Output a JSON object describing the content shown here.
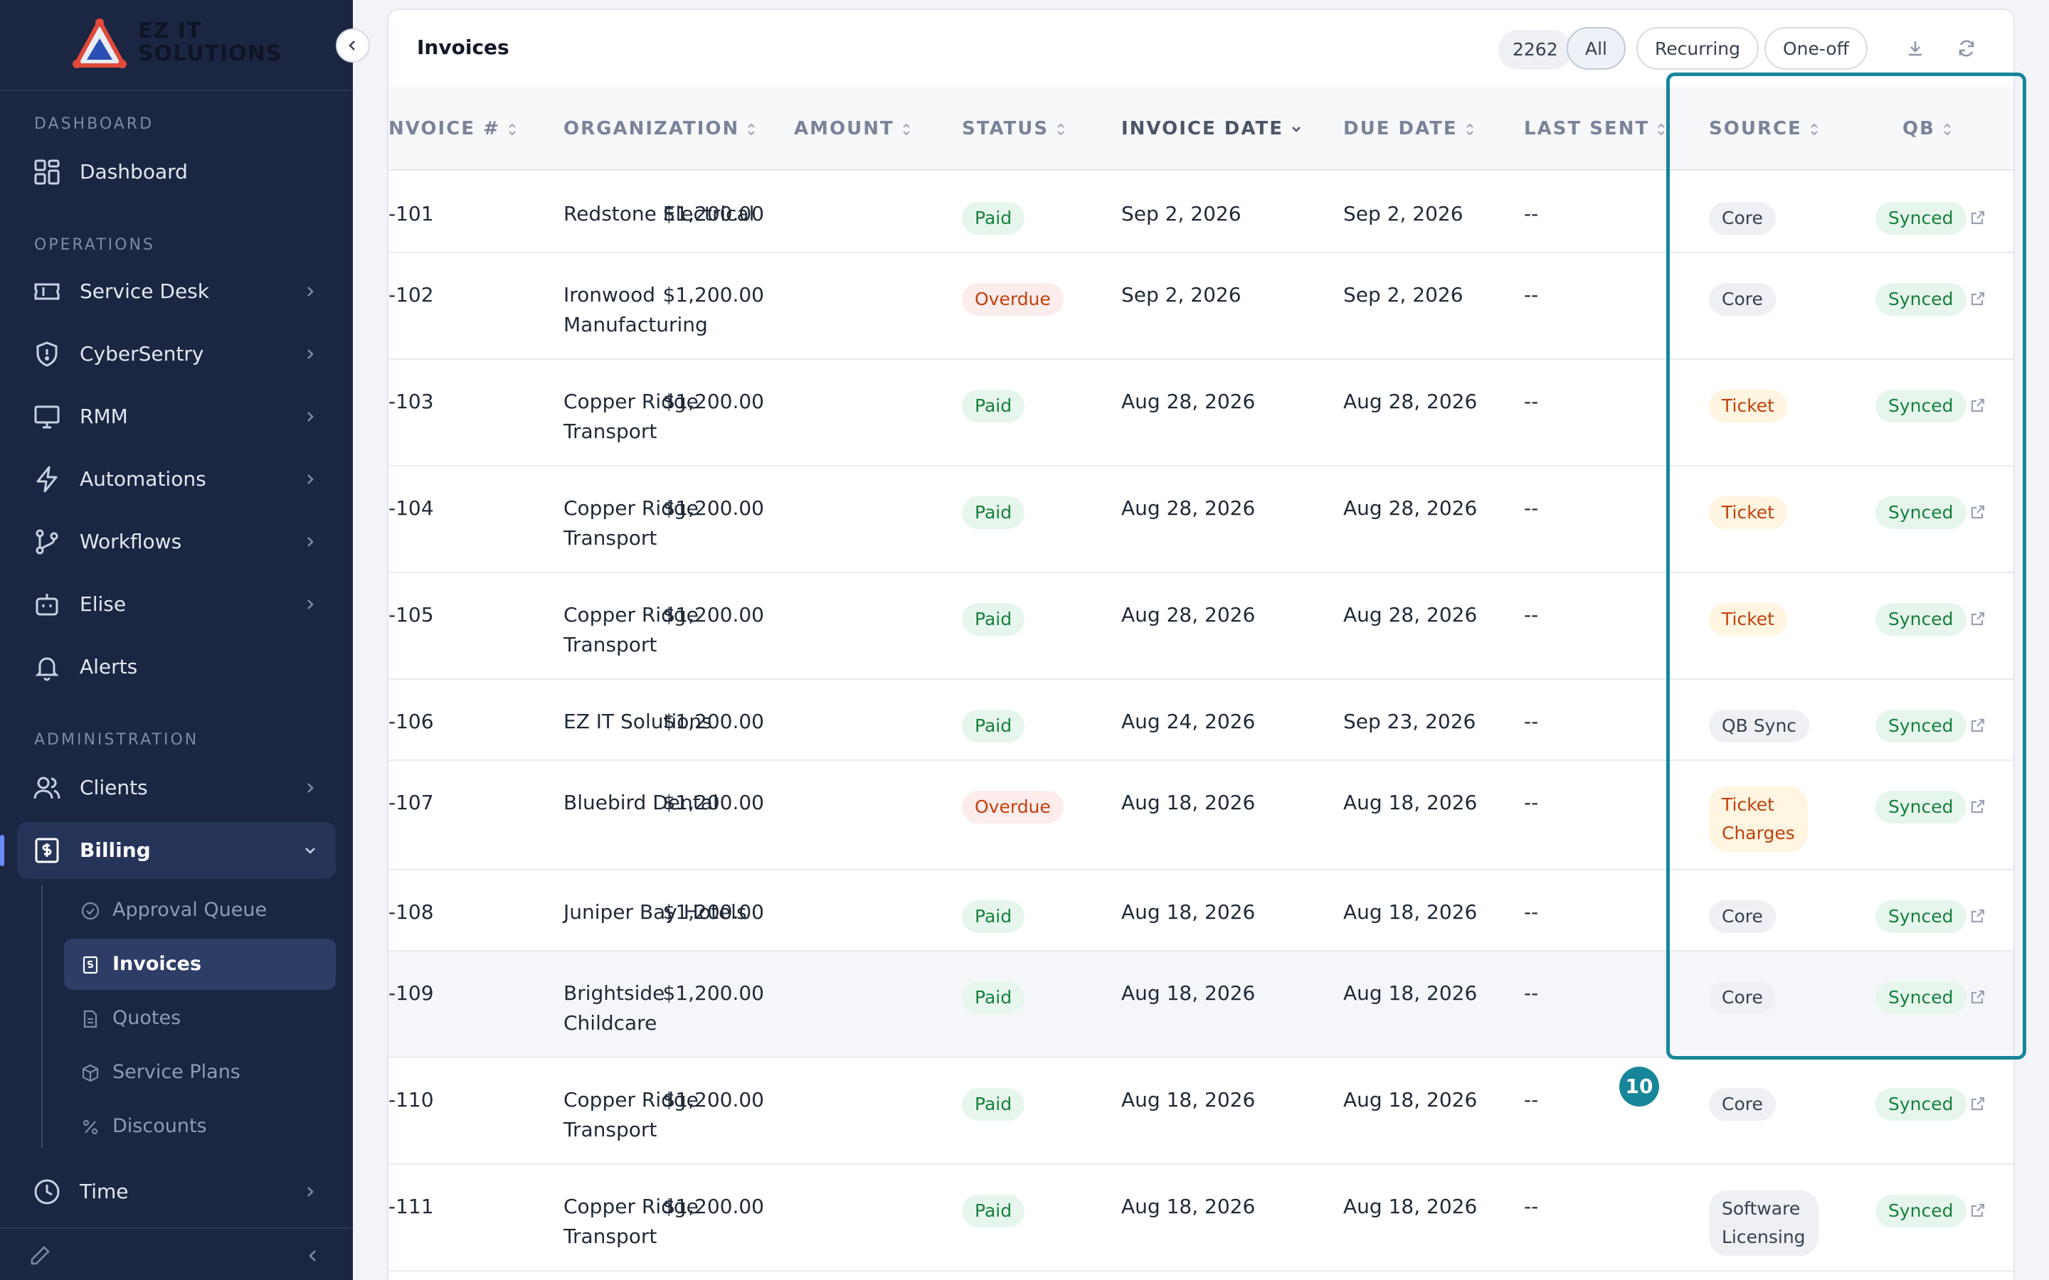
{
  "brand": {
    "line1": "EZ IT",
    "line2": "SOLUTIONS"
  },
  "sidebar": {
    "sections": {
      "dashboard": "DASHBOARD",
      "operations": "OPERATIONS",
      "administration": "ADMINISTRATION"
    },
    "items": {
      "dashboard": "Dashboard",
      "service_desk": "Service Desk",
      "cybersentry": "CyberSentry",
      "rmm": "RMM",
      "automations": "Automations",
      "workflows": "Workflows",
      "elise": "Elise",
      "alerts": "Alerts",
      "clients": "Clients",
      "billing": "Billing",
      "time": "Time"
    },
    "billing_sub": {
      "approval_queue": "Approval Queue",
      "invoices": "Invoices",
      "quotes": "Quotes",
      "service_plans": "Service Plans",
      "discounts": "Discounts"
    }
  },
  "invoices": {
    "title": "Invoices",
    "count": "2262",
    "filters": {
      "all": "All",
      "recurring": "Recurring",
      "one_off": "One-off"
    },
    "columns": {
      "invoice_no": "NVOICE #",
      "organization": "ORGANIZATION",
      "amount": "AMOUNT",
      "status": "STATUS",
      "invoice_date": "INVOICE DATE",
      "due_date": "DUE DATE",
      "last_sent": "LAST SENT",
      "source": "SOURCE",
      "qb": "QB"
    },
    "rows": [
      {
        "no": "-101",
        "org1": "Redstone Electrical",
        "org2": "",
        "amount": "$1,200.00",
        "status": "Paid",
        "inv": "Sep 2, 2026",
        "due": "Sep 2, 2026",
        "sent": "--",
        "src1": "Core",
        "src2": "",
        "qb": "Synced"
      },
      {
        "no": "-102",
        "org1": "Ironwood",
        "org2": "Manufacturing",
        "amount": "$1,200.00",
        "status": "Overdue",
        "inv": "Sep 2, 2026",
        "due": "Sep 2, 2026",
        "sent": "--",
        "src1": "Core",
        "src2": "",
        "qb": "Synced"
      },
      {
        "no": "-103",
        "org1": "Copper Ridge",
        "org2": "Transport",
        "amount": "$1,200.00",
        "status": "Paid",
        "inv": "Aug 28, 2026",
        "due": "Aug 28, 2026",
        "sent": "--",
        "src1": "Ticket",
        "src2": "",
        "qb": "Synced"
      },
      {
        "no": "-104",
        "org1": "Copper Ridge",
        "org2": "Transport",
        "amount": "$1,200.00",
        "status": "Paid",
        "inv": "Aug 28, 2026",
        "due": "Aug 28, 2026",
        "sent": "--",
        "src1": "Ticket",
        "src2": "",
        "qb": "Synced"
      },
      {
        "no": "-105",
        "org1": "Copper Ridge",
        "org2": "Transport",
        "amount": "$1,200.00",
        "status": "Paid",
        "inv": "Aug 28, 2026",
        "due": "Aug 28, 2026",
        "sent": "--",
        "src1": "Ticket",
        "src2": "",
        "qb": "Synced"
      },
      {
        "no": "-106",
        "org1": "EZ IT Solutions",
        "org2": "",
        "amount": "$1,200.00",
        "status": "Paid",
        "inv": "Aug 24, 2026",
        "due": "Sep 23, 2026",
        "sent": "--",
        "src1": "QB Sync",
        "src2": "",
        "qb": "Synced"
      },
      {
        "no": "-107",
        "org1": "Bluebird Dental",
        "org2": "",
        "amount": "$1,200.00",
        "status": "Overdue",
        "inv": "Aug 18, 2026",
        "due": "Aug 18, 2026",
        "sent": "--",
        "src1": "Ticket",
        "src2": "Charges",
        "qb": "Synced"
      },
      {
        "no": "-108",
        "org1": "Juniper Bay Hotels",
        "org2": "",
        "amount": "$1,200.00",
        "status": "Paid",
        "inv": "Aug 18, 2026",
        "due": "Aug 18, 2026",
        "sent": "--",
        "src1": "Core",
        "src2": "",
        "qb": "Synced"
      },
      {
        "no": "-109",
        "org1": "Brightside",
        "org2": "Childcare",
        "amount": "$1,200.00",
        "status": "Paid",
        "inv": "Aug 18, 2026",
        "due": "Aug 18, 2026",
        "sent": "--",
        "src1": "Core",
        "src2": "",
        "qb": "Synced"
      },
      {
        "no": "-110",
        "org1": "Copper Ridge",
        "org2": "Transport",
        "amount": "$1,200.00",
        "status": "Paid",
        "inv": "Aug 18, 2026",
        "due": "Aug 18, 2026",
        "sent": "--",
        "src1": "Core",
        "src2": "",
        "qb": "Synced"
      },
      {
        "no": "-111",
        "org1": "Copper Ridge",
        "org2": "Transport",
        "amount": "$1,200.00",
        "status": "Paid",
        "inv": "Aug 18, 2026",
        "due": "Aug 18, 2026",
        "sent": "--",
        "src1": "Software",
        "src2": "Licensing",
        "qb": "Synced"
      }
    ]
  },
  "annotation": {
    "step": "10",
    "color": "#17869a"
  },
  "colors": {
    "sidebar_bg": "#1b2642",
    "paid": "#15803d",
    "overdue": "#c2410c",
    "accent": "#6a8cff"
  },
  "icons": {
    "nav": [
      "dashboard-grid-icon",
      "service-desk-ticket-icon",
      "shield-icon",
      "monitor-icon",
      "lightning-icon",
      "workflow-branch-icon",
      "robot-icon",
      "bell-icon",
      "users-icon",
      "billing-dollar-icon",
      "clock-icon"
    ],
    "toolbar": [
      "download-icon",
      "refresh-icon"
    ]
  }
}
